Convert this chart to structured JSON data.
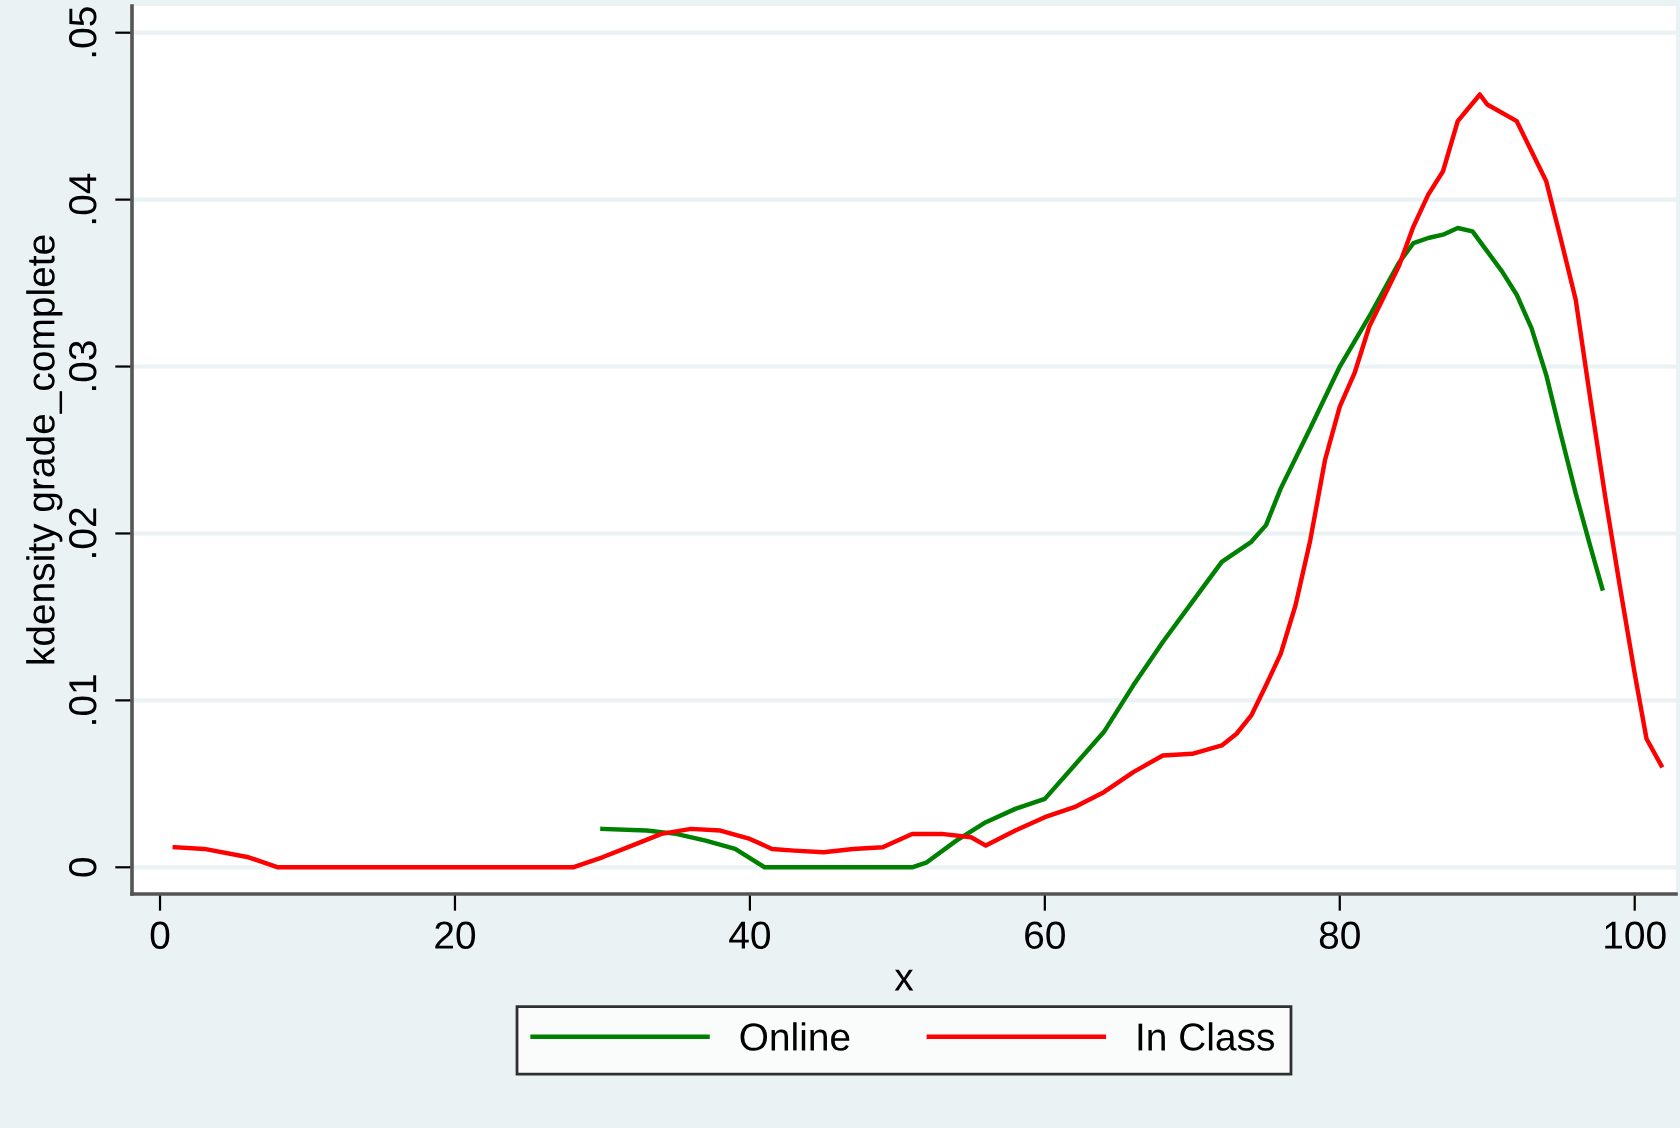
{
  "chart_data": {
    "type": "line",
    "ylabel": "kdensity grade_complete",
    "xlabel": "x",
    "xlim": [
      -1.9,
      102.8
    ],
    "ylim": [
      -0.0016,
      0.0516
    ],
    "xticks": [
      0,
      20,
      40,
      60,
      80,
      100
    ],
    "yticks": [
      0,
      {
        "value": 0.01,
        "label": ".01"
      },
      {
        "value": 0.02,
        "label": ".02"
      },
      {
        "value": 0.03,
        "label": ".03"
      },
      {
        "value": 0.04,
        "label": ".04"
      },
      {
        "value": 0.05,
        "label": ".05"
      }
    ],
    "grid": "y",
    "legend": "bottom",
    "marker": "none",
    "line_style": "solid",
    "series": [
      {
        "name": "Online",
        "color": "#008000",
        "x": [
          30,
          33,
          35,
          37,
          39,
          41,
          45,
          51,
          52,
          54,
          56,
          58,
          60,
          62,
          64,
          66,
          68,
          70,
          72,
          74,
          75,
          76,
          78,
          80,
          82,
          84,
          85,
          86,
          87,
          88,
          89,
          90,
          91,
          92,
          93,
          94,
          95,
          96,
          97,
          97.8
        ],
        "values": [
          0.0023,
          0.0022,
          0.002,
          0.0016,
          0.0011,
          0,
          0,
          0,
          0.0003,
          0.0016,
          0.0027,
          0.0035,
          0.0041,
          0.0061,
          0.0081,
          0.0109,
          0.0135,
          0.0159,
          0.0183,
          0.0195,
          0.0205,
          0.0227,
          0.0263,
          0.03,
          0.033,
          0.0362,
          0.0374,
          0.0377,
          0.0379,
          0.0383,
          0.0381,
          0.0369,
          0.0357,
          0.0343,
          0.0323,
          0.0295,
          0.0259,
          0.0224,
          0.0192,
          0.0167
        ]
      },
      {
        "name": "In Class",
        "color": "#ff0000",
        "x": [
          1,
          3,
          6,
          8,
          20,
          28,
          29,
          30,
          32,
          34,
          36,
          38,
          40,
          41.5,
          43,
          45,
          47,
          49,
          51,
          53,
          55,
          56,
          58,
          60,
          62,
          64,
          66,
          68,
          70,
          72,
          73,
          74,
          75,
          76,
          77,
          78,
          79,
          80,
          81,
          82,
          83,
          84,
          85,
          86,
          87,
          88,
          89.5,
          90,
          92,
          94,
          95,
          96,
          97,
          98,
          99,
          100,
          100.8,
          101.8
        ],
        "values": [
          0.0012,
          0.0011,
          0.0006,
          0,
          0,
          0,
          0.0003,
          0.0006,
          0.0013,
          0.002,
          0.0023,
          0.0022,
          0.0017,
          0.0011,
          0.001,
          0.0009,
          0.0011,
          0.0012,
          0.002,
          0.002,
          0.0018,
          0.0013,
          0.0022,
          0.003,
          0.0036,
          0.0045,
          0.0057,
          0.0067,
          0.0068,
          0.0073,
          0.008,
          0.0091,
          0.0109,
          0.0128,
          0.0157,
          0.0196,
          0.0244,
          0.0276,
          0.0296,
          0.0324,
          0.0342,
          0.036,
          0.0384,
          0.0403,
          0.0417,
          0.0447,
          0.0463,
          0.0457,
          0.0447,
          0.0411,
          0.0376,
          0.034,
          0.028,
          0.0222,
          0.0168,
          0.0116,
          0.0077,
          0.0061
        ]
      }
    ]
  }
}
